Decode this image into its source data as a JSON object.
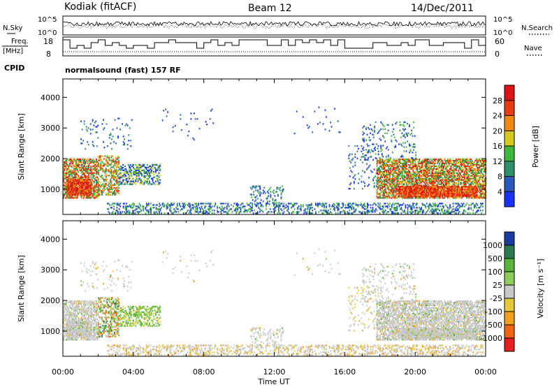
{
  "header": {
    "station": "Kodiak (fitACF)",
    "beam": "Beam 12",
    "date": "14/Dec/2011"
  },
  "summary_panels": {
    "left_labels": {
      "nsky": "N.Sky",
      "freq_line1": "Freq.",
      "freq_line2": "[MHz]",
      "cpid": "CPID"
    },
    "right_labels": {
      "nsearch": "N.Search",
      "nave": "Nave"
    },
    "noise_ticks_left": [
      "10^5",
      "10^0"
    ],
    "noise_ticks_right": [
      "10^5",
      "10^0"
    ],
    "freq_ticks_left": [
      "18",
      "8"
    ],
    "nave_ticks_right": [
      "60",
      "0"
    ],
    "cpid_text": "normalsound (fast) 157 RF"
  },
  "chart_data": [
    {
      "type": "heatmap",
      "name": "power",
      "ylabel": "Slant Range [km]",
      "yticks": [
        1000,
        2000,
        3000,
        4000
      ],
      "ylim": [
        180,
        4600
      ],
      "xlim": [
        0,
        24
      ],
      "colorbar_label": "Power [dB]",
      "colorbar_ticks": [
        "4",
        "8",
        "12",
        "16",
        "20",
        "24",
        "28"
      ],
      "colorbar_colors": [
        "#1a32ff",
        "#2a5ab8",
        "#2e8f6a",
        "#3cb83c",
        "#d2c81e",
        "#f08a14",
        "#e63c14",
        "#dc1414"
      ]
    },
    {
      "type": "heatmap",
      "name": "velocity",
      "ylabel": "Slant Range [km]",
      "yticks": [
        1000,
        2000,
        3000,
        4000
      ],
      "ylim": [
        180,
        4600
      ],
      "xlim": [
        0,
        24
      ],
      "colorbar_label": "Velocity [m s⁻¹]",
      "colorbar_ticks": [
        "1000",
        "500",
        "100",
        "25",
        "-25",
        "-100",
        "-500",
        "-1000"
      ],
      "colorbar_colors": [
        "#1a3ca0",
        "#2a7a50",
        "#5ab43c",
        "#8ccc5a",
        "#c8c8c8",
        "#e6c83c",
        "#f0a01e",
        "#f06414",
        "#e61e1e"
      ],
      "xlabel": "Time UT",
      "xticks": [
        "00:00",
        "04:00",
        "08:00",
        "12:00",
        "16:00",
        "20:00",
        "00:00"
      ]
    }
  ]
}
